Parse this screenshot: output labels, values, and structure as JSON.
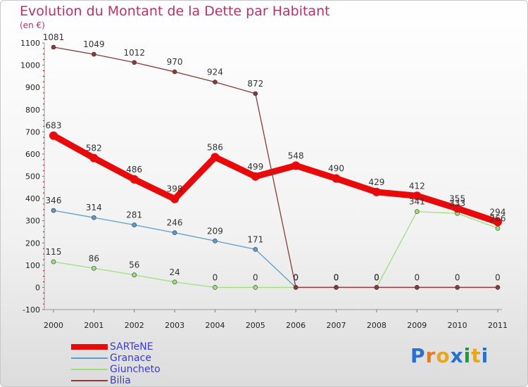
{
  "chart_data": {
    "type": "line",
    "title": "Evolution du Montant de la Dette par Habitant",
    "unit_label": "(en €)",
    "x": [
      "2000",
      "2001",
      "2002",
      "2003",
      "2004",
      "2005",
      "2006",
      "2007",
      "2008",
      "2009",
      "2010",
      "2011"
    ],
    "ylim": [
      -100,
      1100
    ],
    "yticks": [
      "-100",
      "0",
      "100",
      "200",
      "300",
      "400",
      "500",
      "600",
      "700",
      "800",
      "900",
      "1000",
      "1100"
    ],
    "series": [
      {
        "name": "SARTeNE",
        "color": "#e8090b",
        "values": [
          683,
          582,
          486,
          398,
          586,
          499,
          548,
          490,
          429,
          412,
          355,
          294
        ],
        "labels": [
          "683",
          "582",
          "486",
          "398",
          "586",
          "499",
          "548",
          "490",
          "429",
          "412",
          "355",
          "294"
        ]
      },
      {
        "name": "Granace",
        "color": "#5b9bd0",
        "values": [
          346,
          314,
          281,
          246,
          209,
          171,
          0,
          0,
          0,
          0,
          0,
          0
        ],
        "labels": [
          "346",
          "314",
          "281",
          "246",
          "209",
          "171",
          "0",
          "0",
          "0",
          "",
          "",
          ""
        ]
      },
      {
        "name": "Giuncheto",
        "color": "#9ee07a",
        "values": [
          115,
          86,
          56,
          24,
          0,
          0,
          0,
          0,
          0,
          341,
          333,
          266
        ],
        "labels": [
          "115",
          "86",
          "56",
          "24",
          "0",
          "0",
          "0",
          "0",
          "0",
          "341",
          "333",
          "266"
        ]
      },
      {
        "name": "Bilia",
        "color": "#8b3a3a",
        "values": [
          1081,
          1049,
          1012,
          970,
          924,
          872,
          0,
          0,
          0,
          0,
          0,
          0
        ],
        "labels": [
          "1081",
          "1049",
          "1012",
          "970",
          "924",
          "872",
          "0",
          "0",
          "0",
          "0",
          "0",
          "0"
        ]
      }
    ],
    "grid": false,
    "legend_position": "bottom-left"
  },
  "brand": {
    "text": "Proxiti",
    "letter_colors": [
      "#2b6fd1",
      "#e87a1e",
      "#e8a51e",
      "#2b6fd1",
      "#1a9a3a",
      "#e8a51e",
      "#2b6fd1"
    ]
  }
}
